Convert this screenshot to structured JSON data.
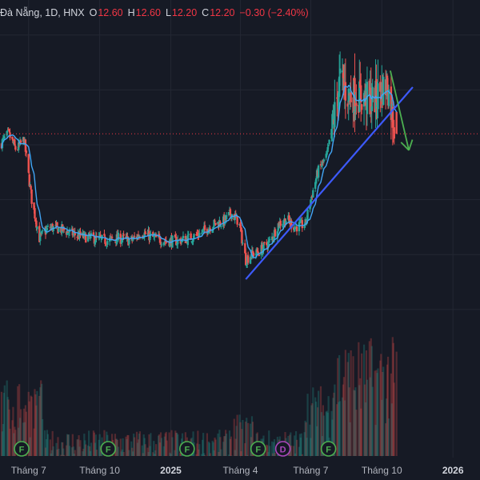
{
  "symbol_header": {
    "title": "Đà Nẵng, 1D, HNX",
    "open_label": "O",
    "open": "12.60",
    "high_label": "H",
    "high": "12.60",
    "low_label": "L",
    "low": "12.20",
    "close_label": "C",
    "close": "12.20",
    "change": "−0.30 (−2.40%)"
  },
  "colors": {
    "background": "#161a25",
    "up": "#26a69a",
    "down": "#ef5350",
    "ma_line": "#42a5f5",
    "trendline": "#3d5afe",
    "forecast_arrow": "#4caf50",
    "price_line": "#f23645",
    "grid": "#232733"
  },
  "event_markers": [
    {
      "label": "F",
      "type": "financial",
      "color": "#4caf50",
      "x": "2024-06-22"
    },
    {
      "label": "F",
      "type": "financial",
      "color": "#4caf50",
      "x": "2024-10-12"
    },
    {
      "label": "F",
      "type": "financial",
      "color": "#4caf50",
      "x": "2025-01-22"
    },
    {
      "label": "F",
      "type": "financial",
      "color": "#4caf50",
      "x": "2025-04-24"
    },
    {
      "label": "D",
      "type": "dividend",
      "color": "#ab47bc",
      "x": "2025-05-26"
    },
    {
      "label": "F",
      "type": "financial",
      "color": "#4caf50",
      "x": "2025-07-24"
    }
  ],
  "chart_data": {
    "type": "candlestick",
    "x_axis": {
      "type": "date",
      "range": [
        "2024-05-25",
        "2026-02-05"
      ],
      "ticks": [
        {
          "label": "Tháng 7",
          "x": "2024-07-01",
          "bold": false
        },
        {
          "label": "Tháng 10",
          "x": "2024-10-01",
          "bold": false
        },
        {
          "label": "2025",
          "x": "2025-01-01",
          "bold": true
        },
        {
          "label": "Tháng 4",
          "x": "2025-04-01",
          "bold": false
        },
        {
          "label": "Tháng 7",
          "x": "2025-07-01",
          "bold": false
        },
        {
          "label": "Tháng 10",
          "x": "2025-10-01",
          "bold": false
        },
        {
          "label": "2026",
          "x": "2026-01-01",
          "bold": true
        }
      ]
    },
    "y_range": [
      8.4,
      14.2
    ],
    "last_close": 12.2,
    "close_path": [
      [
        "2024-05-25",
        12.0
      ],
      [
        "2024-06-05",
        12.2
      ],
      [
        "2024-06-15",
        11.9
      ],
      [
        "2024-06-25",
        12.1
      ],
      [
        "2024-07-05",
        11.0
      ],
      [
        "2024-07-15",
        10.3
      ],
      [
        "2024-07-28",
        10.5
      ],
      [
        "2024-08-15",
        10.45
      ],
      [
        "2024-09-01",
        10.35
      ],
      [
        "2024-09-20",
        10.3
      ],
      [
        "2024-10-10",
        10.25
      ],
      [
        "2024-10-25",
        10.3
      ],
      [
        "2024-11-10",
        10.25
      ],
      [
        "2024-11-25",
        10.4
      ],
      [
        "2024-12-10",
        10.3
      ],
      [
        "2024-12-25",
        10.25
      ],
      [
        "2025-01-10",
        10.25
      ],
      [
        "2025-01-25",
        10.3
      ],
      [
        "2025-02-10",
        10.4
      ],
      [
        "2025-02-25",
        10.55
      ],
      [
        "2025-03-10",
        10.6
      ],
      [
        "2025-03-20",
        10.75
      ],
      [
        "2025-03-30",
        10.6
      ],
      [
        "2025-04-08",
        9.9
      ],
      [
        "2025-04-15",
        10.0
      ],
      [
        "2025-04-25",
        10.05
      ],
      [
        "2025-05-10",
        10.25
      ],
      [
        "2025-05-20",
        10.55
      ],
      [
        "2025-05-31",
        10.65
      ],
      [
        "2025-06-10",
        10.5
      ],
      [
        "2025-06-24",
        10.55
      ],
      [
        "2025-07-01",
        11.0
      ],
      [
        "2025-07-10",
        11.5
      ],
      [
        "2025-07-22",
        11.8
      ],
      [
        "2025-07-30",
        12.4
      ],
      [
        "2025-08-08",
        13.2
      ],
      [
        "2025-08-18",
        12.9
      ],
      [
        "2025-08-28",
        12.9
      ],
      [
        "2025-09-10",
        12.85
      ],
      [
        "2025-09-20",
        12.8
      ],
      [
        "2025-09-30",
        13.0
      ],
      [
        "2025-10-08",
        13.1
      ],
      [
        "2025-10-15",
        12.5
      ],
      [
        "2025-10-20",
        12.2
      ]
    ],
    "trendline": {
      "from": [
        "2025-04-08",
        9.55
      ],
      "to": [
        "2025-11-10",
        13.05
      ]
    },
    "forecast_arrow": {
      "from": [
        "2025-10-12",
        13.35
      ],
      "to": [
        "2025-11-05",
        11.9
      ]
    },
    "volume_note": "volume bars shown at bottom without a numeric scale"
  }
}
